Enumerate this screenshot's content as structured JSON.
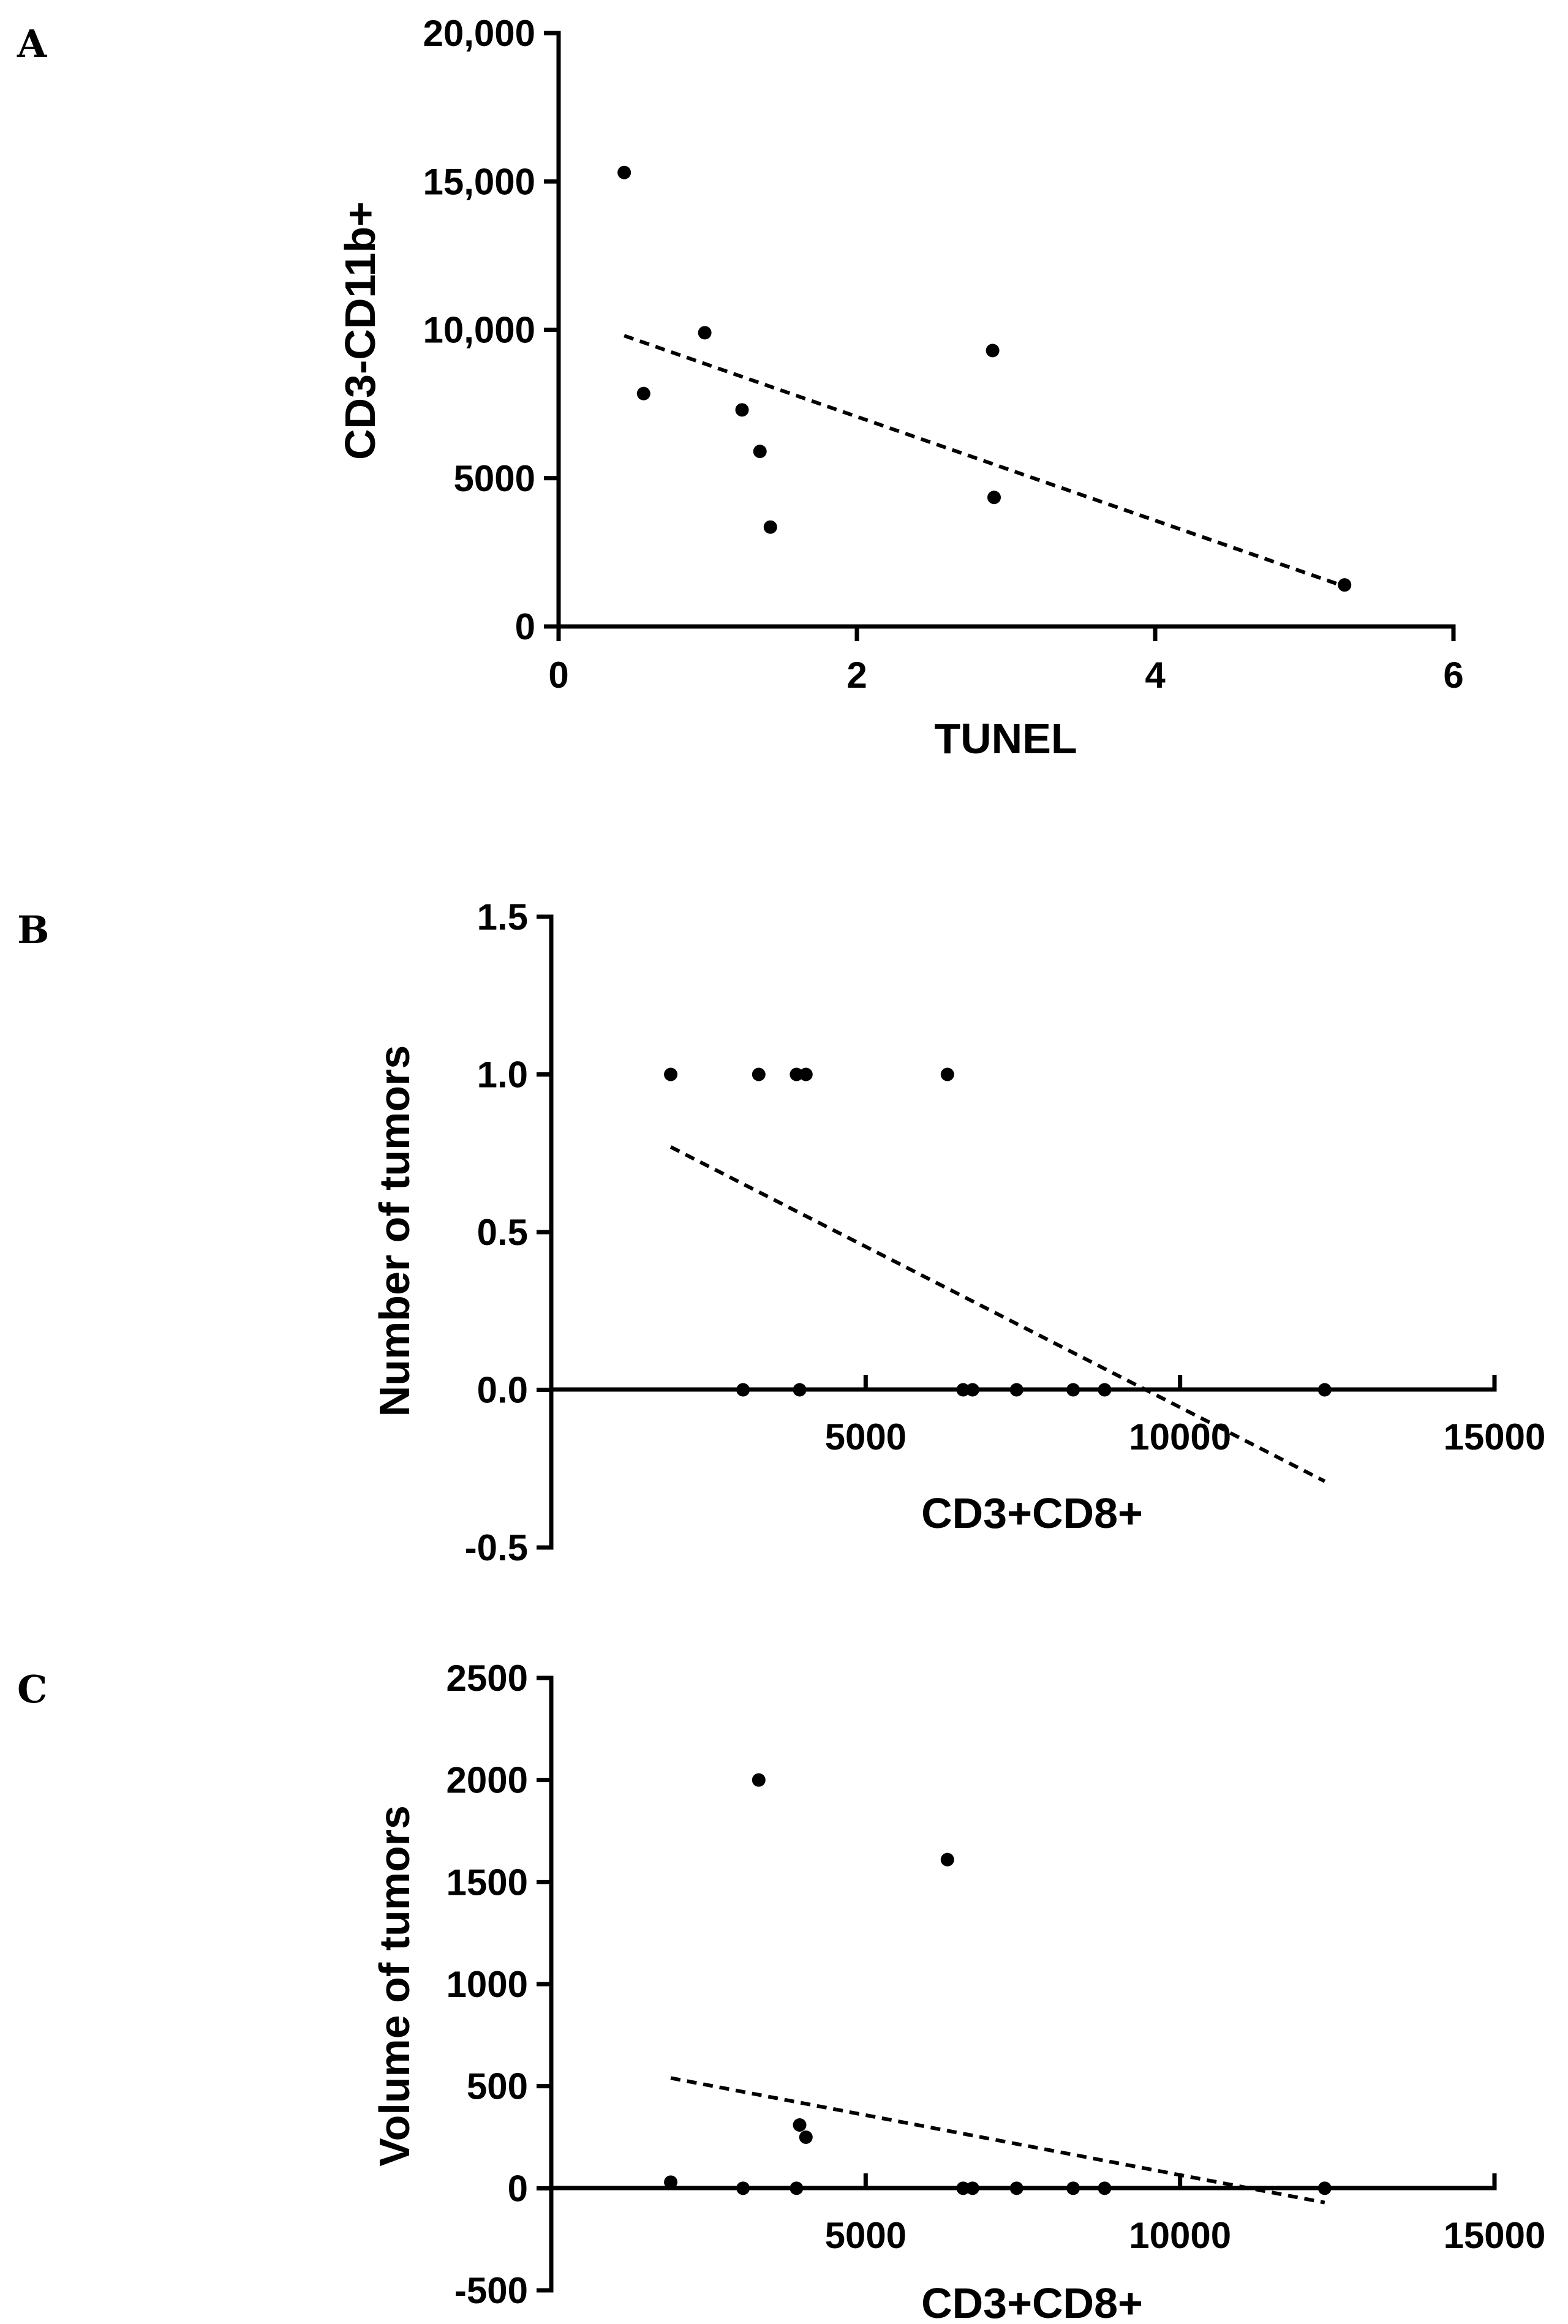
{
  "chart_data": [
    {
      "panel": "A",
      "type": "scatter",
      "title": "",
      "xlabel": "TUNEL",
      "ylabel": "CD3-CD11b+",
      "xlim": [
        0,
        6
      ],
      "ylim": [
        0,
        20000
      ],
      "xticks": [
        0,
        2,
        4,
        6
      ],
      "xtick_labels": [
        "0",
        "2",
        "4",
        "6"
      ],
      "yticks": [
        0,
        5000,
        10000,
        15000,
        20000
      ],
      "ytick_labels": [
        "0",
        "5000",
        "10,000",
        "15,000",
        "20,000"
      ],
      "points": [
        {
          "x": 0.44,
          "y": 15300
        },
        {
          "x": 0.57,
          "y": 7850
        },
        {
          "x": 0.98,
          "y": 9900
        },
        {
          "x": 1.23,
          "y": 7300
        },
        {
          "x": 1.35,
          "y": 5900
        },
        {
          "x": 1.42,
          "y": 3350
        },
        {
          "x": 2.91,
          "y": 9300
        },
        {
          "x": 2.92,
          "y": 4350
        },
        {
          "x": 5.27,
          "y": 1400
        }
      ],
      "trendline": {
        "style": "dashed",
        "x": [
          0.44,
          5.27
        ],
        "y": [
          9800,
          1350
        ]
      }
    },
    {
      "panel": "B",
      "type": "scatter",
      "title": "",
      "xlabel": "CD3+CD8+",
      "ylabel": "Number of tumors",
      "xlim": [
        0,
        15000
      ],
      "ylim": [
        -0.5,
        1.5
      ],
      "xticks": [
        5000,
        10000,
        15000
      ],
      "xtick_labels": [
        "5000",
        "10000",
        "15000"
      ],
      "yticks": [
        -0.5,
        0.0,
        0.5,
        1.0,
        1.5
      ],
      "ytick_labels": [
        "-0.5",
        "0.0",
        "0.5",
        "1.0",
        "1.5"
      ],
      "points": [
        {
          "x": 1900,
          "y": 1.0
        },
        {
          "x": 3300,
          "y": 1.0
        },
        {
          "x": 3900,
          "y": 1.0
        },
        {
          "x": 4050,
          "y": 1.0
        },
        {
          "x": 6300,
          "y": 1.0
        },
        {
          "x": 3050,
          "y": 0.0
        },
        {
          "x": 3950,
          "y": 0.0
        },
        {
          "x": 6550,
          "y": 0.0
        },
        {
          "x": 6700,
          "y": 0.0
        },
        {
          "x": 7400,
          "y": 0.0
        },
        {
          "x": 8300,
          "y": 0.0
        },
        {
          "x": 8800,
          "y": 0.0
        },
        {
          "x": 12300,
          "y": 0.0
        }
      ],
      "trendline": {
        "style": "dashed",
        "x": [
          1900,
          12300
        ],
        "y": [
          0.77,
          -0.29
        ]
      }
    },
    {
      "panel": "C",
      "type": "scatter",
      "title": "",
      "xlabel": "CD3+CD8+",
      "ylabel": "Volume of tumors",
      "xlim": [
        0,
        15000
      ],
      "ylim": [
        -500,
        2500
      ],
      "xticks": [
        5000,
        10000,
        15000
      ],
      "xtick_labels": [
        "5000",
        "10000",
        "15000"
      ],
      "yticks": [
        -500,
        0,
        500,
        1000,
        1500,
        2000,
        2500
      ],
      "ytick_labels": [
        "-500",
        "0",
        "500",
        "1000",
        "1500",
        "2000",
        "2500"
      ],
      "points": [
        {
          "x": 1900,
          "y": 30
        },
        {
          "x": 3050,
          "y": 0
        },
        {
          "x": 3300,
          "y": 2000
        },
        {
          "x": 3900,
          "y": 0
        },
        {
          "x": 3950,
          "y": 310
        },
        {
          "x": 4050,
          "y": 250
        },
        {
          "x": 6300,
          "y": 1610
        },
        {
          "x": 6550,
          "y": 0
        },
        {
          "x": 6700,
          "y": 0
        },
        {
          "x": 7400,
          "y": 0
        },
        {
          "x": 8300,
          "y": 0
        },
        {
          "x": 8800,
          "y": 0
        },
        {
          "x": 12300,
          "y": 0
        }
      ],
      "trendline": {
        "style": "dashed",
        "x": [
          1900,
          12300
        ],
        "y": [
          540,
          -70
        ]
      }
    }
  ]
}
